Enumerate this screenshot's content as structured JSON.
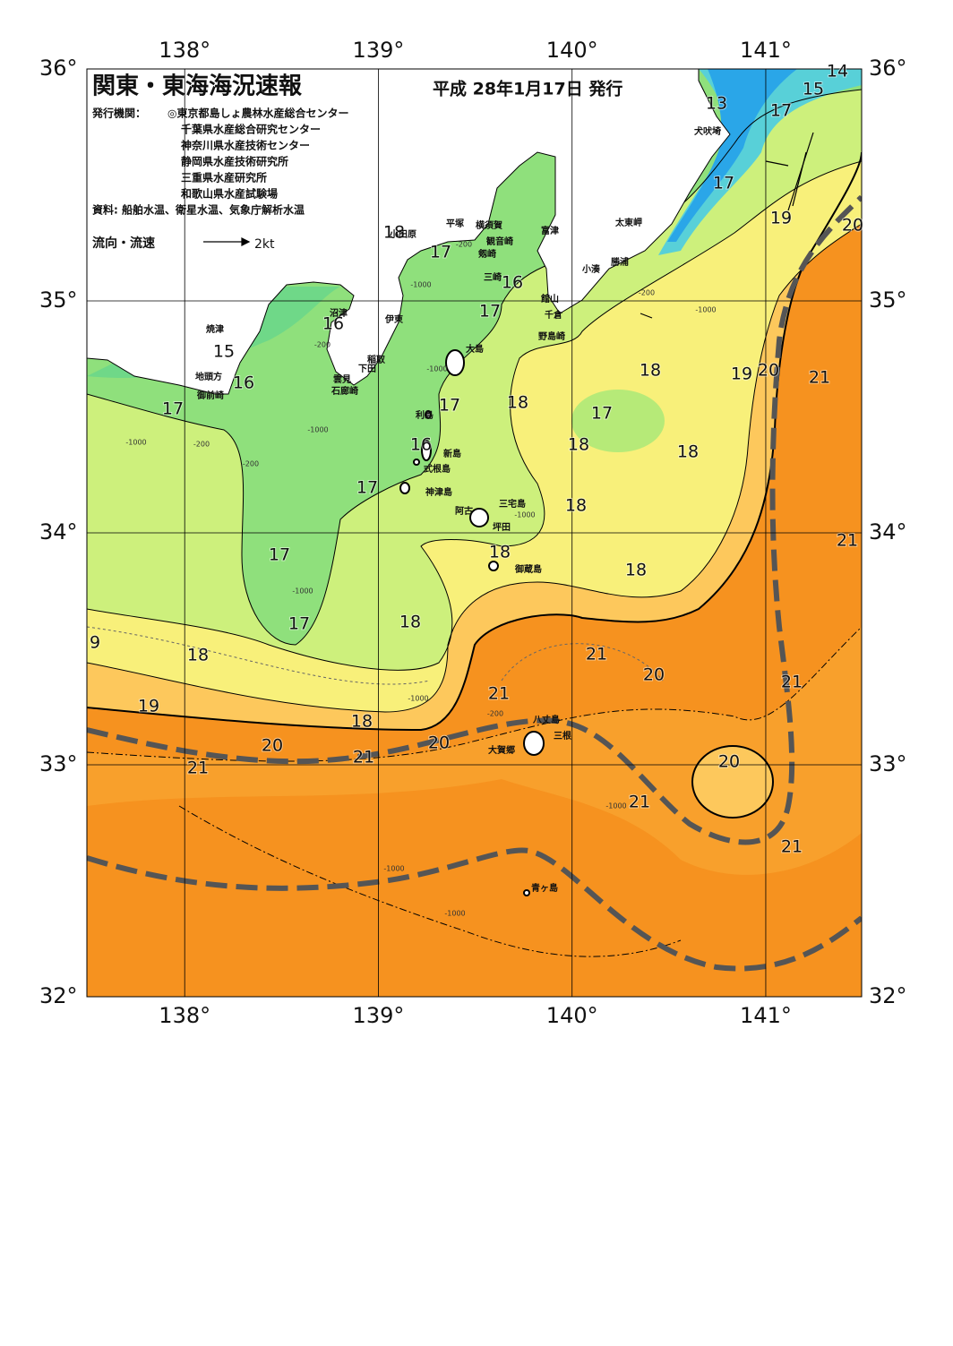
{
  "header": {
    "title": "関東・東海海況速報",
    "date": "平成 28年1月17日 発行",
    "issuer_label": "発行機関：",
    "issuers": [
      "◎東京都島しょ農林水産総合センター",
      "千葉県水産総合研究センター",
      "神奈川県水産技術センター",
      "静岡県水産技術研究所",
      "三重県水産研究所",
      "和歌山県水産試験場"
    ],
    "source": "資料: 船舶水温、衛星水温、気象庁解析水温",
    "legend_label": "流向・流速",
    "legend_speed": "2kt"
  },
  "map": {
    "xlim": [
      137.495,
      141.495
    ],
    "ylim": [
      32,
      36
    ],
    "lon_ticks": [
      {
        "value": 138,
        "label": "138°"
      },
      {
        "value": 139,
        "label": "139°"
      },
      {
        "value": 140,
        "label": "140°"
      },
      {
        "value": 141,
        "label": "141°"
      }
    ],
    "lat_ticks": [
      {
        "value": 36,
        "label": "36°"
      },
      {
        "value": 35,
        "label": "35°"
      },
      {
        "value": 34,
        "label": "34°"
      },
      {
        "value": 33,
        "label": "33°"
      },
      {
        "value": 32,
        "label": "32°"
      }
    ],
    "isotherm_labels": [
      14,
      15,
      13,
      17,
      17,
      19,
      20,
      18,
      17,
      16,
      17,
      16,
      15,
      16,
      17,
      18,
      19,
      20,
      21,
      17,
      18,
      17,
      18,
      18,
      16,
      17,
      18,
      21,
      17,
      18,
      18,
      17,
      18,
      9,
      18,
      21,
      20,
      21,
      21,
      19,
      18,
      20,
      20,
      21,
      21,
      20,
      21,
      21
    ],
    "places": [
      "小田原",
      "平塚",
      "横須賀",
      "観音崎",
      "富津",
      "剱崎",
      "三崎",
      "館山",
      "千倉",
      "野島崎",
      "太東岬",
      "勝浦",
      "小湊",
      "犬吠埼",
      "大島",
      "沼津",
      "伊東",
      "焼津",
      "稲取",
      "下田",
      "雲見",
      "石廊崎",
      "地頭方",
      "御前崎",
      "利島",
      "新島",
      "式根島",
      "神津島",
      "阿古",
      "三宅島",
      "坪田",
      "御蔵島",
      "八丈島",
      "三根",
      "大賀郷",
      "青ヶ島"
    ],
    "depth_labels": [
      -200,
      -1000,
      -200,
      -1000,
      -200,
      -1000,
      -200,
      -1000,
      -1000,
      -200,
      -1000,
      -1000,
      -1000,
      -200,
      -1000,
      -1000,
      -1000
    ]
  }
}
